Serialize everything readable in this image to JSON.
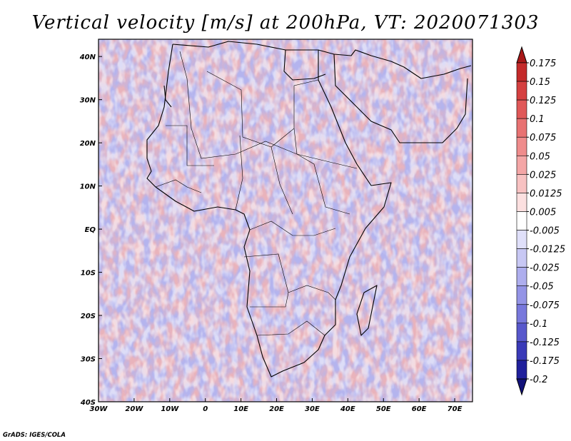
{
  "chart_data": {
    "type": "heatmap",
    "title": "Vertical velocity [m/s] at 200hPa, VT: 2020071303",
    "variable": "Vertical velocity",
    "units": "m/s",
    "level": "200hPa",
    "valid_time": "2020071303",
    "x_ticks": [
      {
        "value": -30,
        "label": "30W"
      },
      {
        "value": -20,
        "label": "20W"
      },
      {
        "value": -10,
        "label": "10W"
      },
      {
        "value": 0,
        "label": "0"
      },
      {
        "value": 10,
        "label": "10E"
      },
      {
        "value": 20,
        "label": "20E"
      },
      {
        "value": 30,
        "label": "30E"
      },
      {
        "value": 40,
        "label": "40E"
      },
      {
        "value": 50,
        "label": "50E"
      },
      {
        "value": 60,
        "label": "60E"
      },
      {
        "value": 70,
        "label": "70E"
      }
    ],
    "y_ticks": [
      {
        "value": 40,
        "label": "40N"
      },
      {
        "value": 30,
        "label": "30N"
      },
      {
        "value": 20,
        "label": "20N"
      },
      {
        "value": 10,
        "label": "10N"
      },
      {
        "value": 0,
        "label": "EQ"
      },
      {
        "value": -10,
        "label": "10S"
      },
      {
        "value": -20,
        "label": "20S"
      },
      {
        "value": -30,
        "label": "30S"
      },
      {
        "value": -40,
        "label": "40S"
      }
    ],
    "xlim": [
      -30,
      75
    ],
    "ylim": [
      -40,
      44
    ],
    "colorbar": {
      "labels": [
        "0.175",
        "0.15",
        "0.125",
        "0.1",
        "0.075",
        "0.05",
        "0.025",
        "0.0125",
        "0.005",
        "-0.005",
        "-0.0125",
        "-0.025",
        "-0.05",
        "-0.075",
        "-0.1",
        "-0.125",
        "-0.175",
        "-0.2"
      ],
      "colors": [
        "#a81818",
        "#c42a2a",
        "#d54040",
        "#e05858",
        "#e87272",
        "#ef8c8c",
        "#f4a6a6",
        "#f8c2c2",
        "#fce0e0",
        "#ffffff",
        "#e0e0fa",
        "#c8c8f4",
        "#aeaeee",
        "#9494e6",
        "#7878dc",
        "#5858cc",
        "#3a3ab8",
        "#20209c",
        "#12127a"
      ]
    }
  },
  "credit": "GrADS: IGES/COLA"
}
